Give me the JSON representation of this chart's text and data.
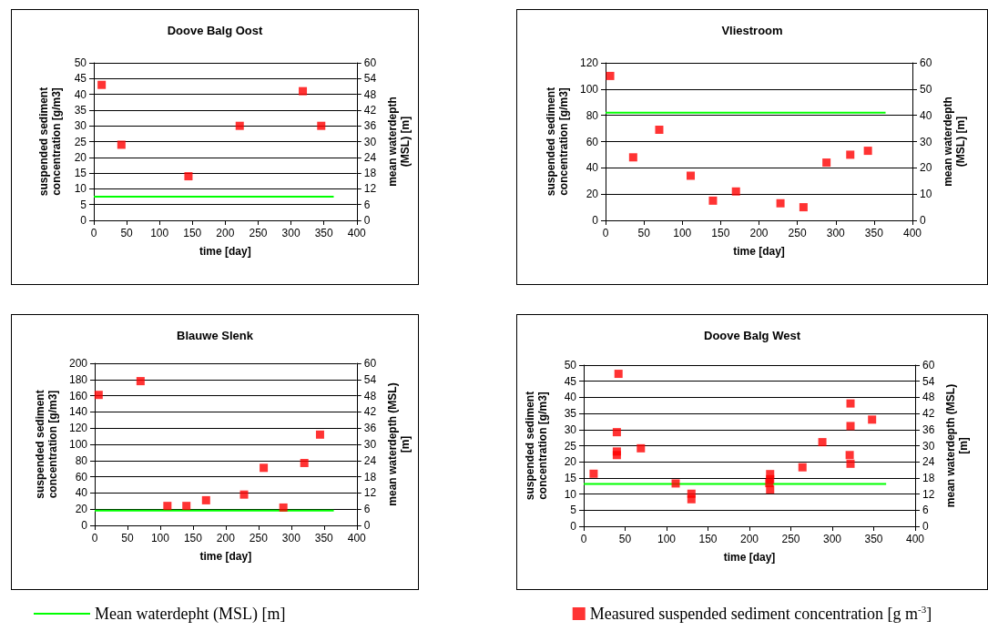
{
  "chart_data": [
    {
      "type": "scatter",
      "title": "Doove Balg Oost",
      "xlabel": "time [day]",
      "ylabel": "suspended sediment\nconcentration [g/m3]",
      "y2label": "mean waterdepth\n(MSL) [m]",
      "xlim": [
        0,
        400
      ],
      "xticks": [
        0,
        50,
        100,
        150,
        200,
        250,
        300,
        350,
        400
      ],
      "ylim": [
        0,
        50
      ],
      "yticks": [
        0,
        5,
        10,
        15,
        20,
        25,
        30,
        35,
        40,
        45,
        50
      ],
      "y2lim": [
        0,
        60
      ],
      "y2ticks": [
        0,
        6,
        12,
        18,
        24,
        30,
        36,
        42,
        48,
        54,
        60
      ],
      "grid": "y",
      "legend": false,
      "series": [
        {
          "type": "line",
          "marker": "none",
          "color": "#00ff00",
          "axis": "y2",
          "x": [
            0,
            365
          ],
          "values": [
            9,
            9
          ]
        },
        {
          "marker": "square",
          "color": "#ff0000",
          "x": [
            12,
            42,
            144,
            222,
            318,
            346
          ],
          "values": [
            43,
            24,
            14,
            30,
            41,
            30
          ]
        }
      ]
    },
    {
      "type": "scatter",
      "title": "Vliestroom",
      "xlabel": "time [day]",
      "ylabel": "suspended sediment\nconcentration [g/m3]",
      "y2label": "mean waterdepth\n(MSL) [m]",
      "xlim": [
        0,
        400
      ],
      "xticks": [
        0,
        50,
        100,
        150,
        200,
        250,
        300,
        350,
        400
      ],
      "ylim": [
        0,
        120
      ],
      "yticks": [
        0,
        20,
        40,
        60,
        80,
        100,
        120
      ],
      "y2lim": [
        0,
        60
      ],
      "y2ticks": [
        0,
        10,
        20,
        30,
        40,
        50,
        60
      ],
      "grid": "y",
      "legend": false,
      "series": [
        {
          "type": "line",
          "marker": "none",
          "color": "#00ff00",
          "axis": "y2",
          "x": [
            0,
            365
          ],
          "values": [
            41,
            41
          ]
        },
        {
          "marker": "square",
          "color": "#ff0000",
          "x": [
            6,
            36,
            70,
            111,
            140,
            170,
            228,
            258,
            288,
            319,
            342
          ],
          "values": [
            110,
            48,
            69,
            34,
            15,
            22,
            13,
            10,
            44,
            50,
            53
          ]
        }
      ]
    },
    {
      "type": "scatter",
      "title": "Blauwe Slenk",
      "xlabel": "time [day]",
      "ylabel": "suspended sediment\nconcentration [g/m3]",
      "y2label": "mean waterdepth (MSL)\n[m]",
      "xlim": [
        0,
        400
      ],
      "xticks": [
        0,
        50,
        100,
        150,
        200,
        250,
        300,
        350,
        400
      ],
      "ylim": [
        0,
        200
      ],
      "yticks": [
        0,
        20,
        40,
        60,
        80,
        100,
        120,
        140,
        160,
        180,
        200
      ],
      "y2lim": [
        0,
        60
      ],
      "y2ticks": [
        0,
        6,
        12,
        18,
        24,
        30,
        36,
        42,
        48,
        54,
        60
      ],
      "grid": "y",
      "legend": "bottom left",
      "series": [
        {
          "type": "line",
          "marker": "none",
          "name": "Mean waterdepht (MSL) [m]",
          "color": "#00ff00",
          "axis": "y2",
          "x": [
            0,
            365
          ],
          "values": [
            5.5,
            5.5
          ]
        },
        {
          "marker": "square",
          "color": "#ff0000",
          "x": [
            6,
            70,
            111,
            140,
            170,
            228,
            258,
            288,
            320,
            344
          ],
          "values": [
            161,
            178,
            24,
            24,
            31,
            38,
            71,
            22,
            77,
            112
          ]
        }
      ]
    },
    {
      "type": "scatter",
      "title": "Doove Balg West",
      "xlabel": "time [day]",
      "ylabel": "suspended sediment\nconcentration [g/m3]",
      "y2label": "mean waterdepth (MSL)\n[m]",
      "xlim": [
        0,
        400
      ],
      "xticks": [
        0,
        50,
        100,
        150,
        200,
        250,
        300,
        350,
        400
      ],
      "ylim": [
        0,
        50
      ],
      "yticks": [
        0,
        5,
        10,
        15,
        20,
        25,
        30,
        35,
        40,
        45,
        50
      ],
      "y2lim": [
        0,
        60
      ],
      "y2ticks": [
        0,
        6,
        12,
        18,
        24,
        30,
        36,
        42,
        48,
        54,
        60
      ],
      "grid": "y",
      "legend": "bottom",
      "series": [
        {
          "type": "line",
          "marker": "none",
          "color": "#00ff00",
          "axis": "y2",
          "x": [
            0,
            365
          ],
          "values": [
            15.8,
            15.8
          ]
        },
        {
          "marker": "square",
          "name": "Measured suspended sediment concentration [g m$^{-3}$]",
          "color": "#ff0000",
          "x": [
            12,
            42,
            40,
            40,
            40,
            69,
            111,
            130,
            130,
            225,
            225,
            224,
            225,
            264,
            288,
            322,
            322,
            321,
            322,
            348
          ],
          "values": [
            16.3,
            47.3,
            29.2,
            23.2,
            22.1,
            24.2,
            13.3,
            10.1,
            8.4,
            16.2,
            14.6,
            13.4,
            11.4,
            18.3,
            26.1,
            38.1,
            31.1,
            22.1,
            19.4,
            33.1
          ]
        }
      ]
    }
  ]
}
